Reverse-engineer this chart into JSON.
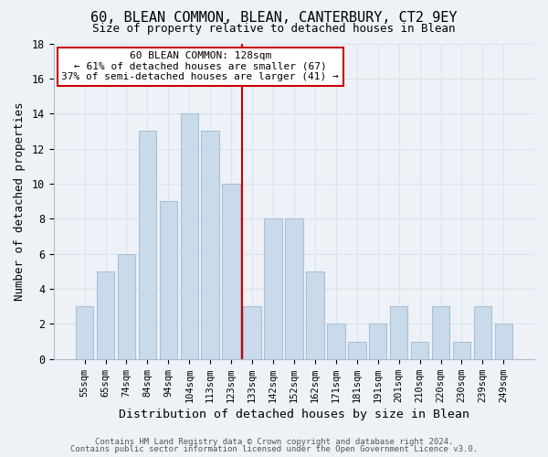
{
  "title": "60, BLEAN COMMON, BLEAN, CANTERBURY, CT2 9EY",
  "subtitle": "Size of property relative to detached houses in Blean",
  "xlabel": "Distribution of detached houses by size in Blean",
  "ylabel": "Number of detached properties",
  "bar_labels": [
    "55sqm",
    "65sqm",
    "74sqm",
    "84sqm",
    "94sqm",
    "104sqm",
    "113sqm",
    "123sqm",
    "133sqm",
    "142sqm",
    "152sqm",
    "162sqm",
    "171sqm",
    "181sqm",
    "191sqm",
    "201sqm",
    "210sqm",
    "220sqm",
    "230sqm",
    "239sqm",
    "249sqm"
  ],
  "bar_values": [
    3,
    5,
    6,
    13,
    9,
    14,
    13,
    10,
    3,
    8,
    8,
    5,
    2,
    1,
    2,
    3,
    1,
    3,
    1,
    3,
    2
  ],
  "bar_color": "#c9daea",
  "bar_edge_color": "#aac0d4",
  "vline_x": 7.5,
  "vline_color": "#cc0000",
  "annotation_line1": "60 BLEAN COMMON: 128sqm",
  "annotation_line2": "← 61% of detached houses are smaller (67)",
  "annotation_line3": "37% of semi-detached houses are larger (41) →",
  "annotation_box_color": "#cc0000",
  "annotation_box_fill": "#ffffff",
  "ylim": [
    0,
    18
  ],
  "yticks": [
    0,
    2,
    4,
    6,
    8,
    10,
    12,
    14,
    16,
    18
  ],
  "grid_color": "#d8e4ec",
  "footer_line1": "Contains HM Land Registry data © Crown copyright and database right 2024.",
  "footer_line2": "Contains public sector information licensed under the Open Government Licence v3.0.",
  "bg_color": "#eef2f7"
}
